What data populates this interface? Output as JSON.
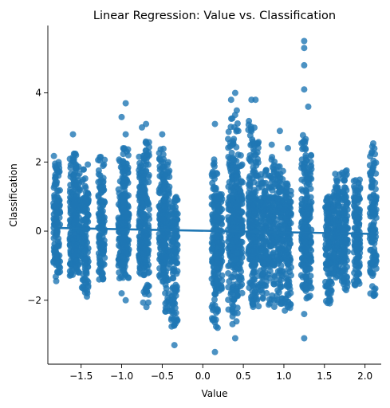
{
  "chart_data": {
    "type": "scatter",
    "title": "Linear Regression: Value vs. Classification",
    "xlabel": "Value",
    "ylabel": "Classification",
    "xlim": [
      -1.91,
      2.2
    ],
    "ylim": [
      -3.85,
      5.95
    ],
    "x_ticks": [
      -1.5,
      -1.0,
      -0.5,
      0.0,
      0.5,
      1.0,
      1.5,
      2.0
    ],
    "x_tick_labels": [
      "−1.5",
      "−1.0",
      "−0.5",
      "0.0",
      "0.5",
      "1.0",
      "1.5",
      "2.0"
    ],
    "y_ticks": [
      -2,
      0,
      2,
      4
    ],
    "y_tick_labels": [
      "−2",
      "0",
      "2",
      "4"
    ],
    "grid": false,
    "point_color": "#1f77b4",
    "regression_line": {
      "x": [
        -1.8,
        2.1
      ],
      "y": [
        0.09,
        -0.08
      ],
      "color": "#1f77b4"
    },
    "clusters": [
      {
        "x": -1.8,
        "ymin": -1.45,
        "ymax": 2.2,
        "outliers": []
      },
      {
        "x": -1.6,
        "ymin": -1.3,
        "ymax": 2.25,
        "outliers": [
          2.8
        ]
      },
      {
        "x": -1.55,
        "ymin": -1.2,
        "ymax": 2.1,
        "outliers": []
      },
      {
        "x": -1.45,
        "ymin": -1.9,
        "ymax": 1.95,
        "outliers": []
      },
      {
        "x": -1.25,
        "ymin": -1.4,
        "ymax": 2.15,
        "outliers": []
      },
      {
        "x": -1.0,
        "ymin": -1.45,
        "ymax": 2.1,
        "outliers": [
          3.3,
          -1.8
        ]
      },
      {
        "x": -0.95,
        "ymin": -1.4,
        "ymax": 2.4,
        "outliers": [
          3.7,
          2.8,
          -2.0
        ]
      },
      {
        "x": -0.75,
        "ymin": -1.3,
        "ymax": 2.2,
        "outliers": [
          3.0
        ]
      },
      {
        "x": -0.7,
        "ymin": -2.2,
        "ymax": 2.6,
        "outliers": [
          3.1
        ]
      },
      {
        "x": -0.5,
        "ymin": -1.5,
        "ymax": 2.4,
        "outliers": [
          2.8
        ]
      },
      {
        "x": -0.45,
        "ymin": -2.4,
        "ymax": 2.0,
        "outliers": []
      },
      {
        "x": -0.35,
        "ymin": -2.8,
        "ymax": 0.6,
        "outliers": [
          -3.3
        ]
      },
      {
        "x": 0.15,
        "ymin": -2.8,
        "ymax": 2.1,
        "outliers": [
          3.1,
          -3.5
        ]
      },
      {
        "x": 0.2,
        "ymin": -1.8,
        "ymax": 1.1,
        "outliers": []
      },
      {
        "x": 0.35,
        "ymin": -2.4,
        "ymax": 3.3,
        "outliers": [
          3.8
        ]
      },
      {
        "x": 0.4,
        "ymin": -2.7,
        "ymax": 3.5,
        "outliers": [
          4.0,
          -3.1
        ]
      },
      {
        "x": 0.45,
        "ymin": -2.0,
        "ymax": 2.3,
        "outliers": []
      },
      {
        "x": 0.6,
        "ymin": -2.1,
        "ymax": 3.2,
        "outliers": [
          3.8
        ]
      },
      {
        "x": 0.65,
        "ymin": -2.2,
        "ymax": 2.6,
        "outliers": [
          3.8
        ]
      },
      {
        "x": 0.75,
        "ymin": -2.0,
        "ymax": 1.8,
        "outliers": []
      },
      {
        "x": 0.85,
        "ymin": -2.2,
        "ymax": 2.2,
        "outliers": [
          2.5
        ]
      },
      {
        "x": 0.95,
        "ymin": -2.1,
        "ymax": 1.9,
        "outliers": [
          2.9
        ]
      },
      {
        "x": 1.05,
        "ymin": -2.3,
        "ymax": 1.4,
        "outliers": [
          2.4
        ]
      },
      {
        "x": 1.25,
        "ymin": -1.7,
        "ymax": 2.8,
        "outliers": [
          5.5,
          5.3,
          4.8,
          4.1,
          -2.4,
          -3.1
        ]
      },
      {
        "x": 1.3,
        "ymin": -2.0,
        "ymax": 2.2,
        "outliers": [
          3.6
        ]
      },
      {
        "x": 1.55,
        "ymin": -2.1,
        "ymax": 1.0,
        "outliers": []
      },
      {
        "x": 1.65,
        "ymin": -1.4,
        "ymax": 1.7,
        "outliers": []
      },
      {
        "x": 1.75,
        "ymin": -1.9,
        "ymax": 1.8,
        "outliers": []
      },
      {
        "x": 1.9,
        "ymin": -1.6,
        "ymax": 1.5,
        "outliers": []
      },
      {
        "x": 2.1,
        "ymin": -1.9,
        "ymax": 2.7,
        "outliers": []
      }
    ]
  }
}
